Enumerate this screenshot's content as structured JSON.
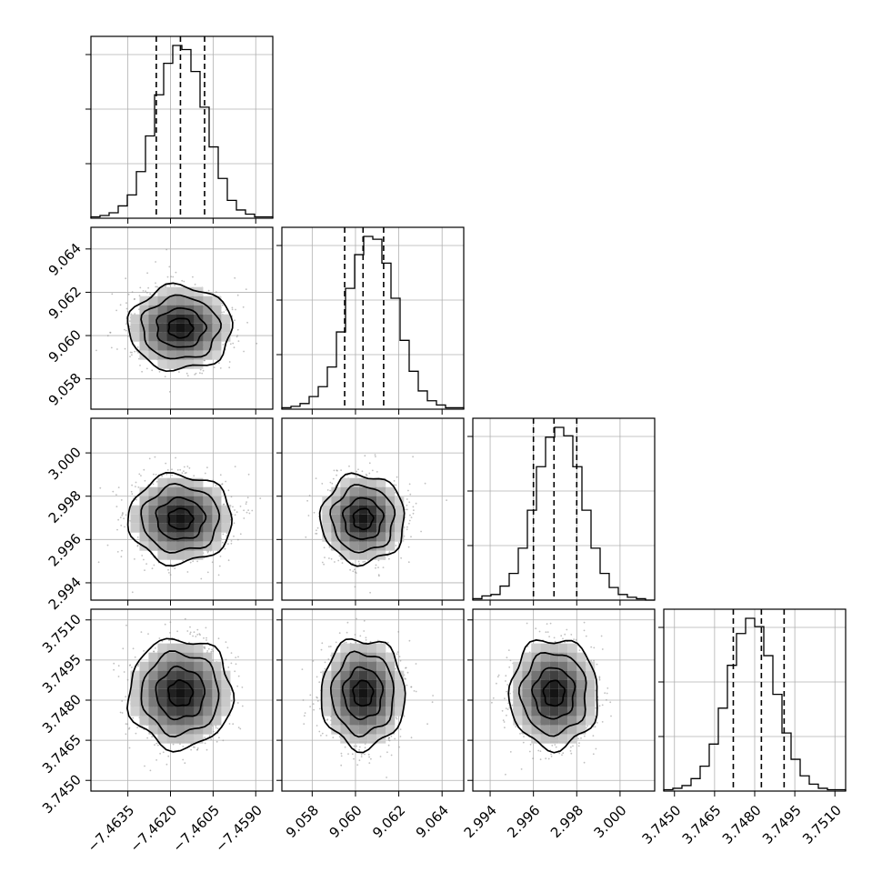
{
  "chart_data": {
    "type": "corner",
    "grid": true,
    "colors": {
      "hist": "#000000",
      "points": "#8c8c8c",
      "grid": "#b0b0b0"
    },
    "parameters": [
      {
        "mean": -7.46165,
        "sigma": 0.00085,
        "range": [
          -7.4648,
          -7.4584
        ],
        "ticks": [
          -7.4635,
          -7.462,
          -7.4605,
          -7.459
        ],
        "tick_labels": [
          "−7.4635",
          "−7.4620",
          "−7.4605",
          "−7.4590"
        ],
        "quantiles": [
          -7.4625,
          -7.46165,
          -7.4608
        ]
      },
      {
        "mean": 9.06035,
        "sigma": 0.0009,
        "range": [
          9.0566,
          9.065
        ],
        "ticks": [
          9.058,
          9.06,
          9.062,
          9.064
        ],
        "tick_labels": [
          "9.058",
          "9.060",
          "9.062",
          "9.064"
        ],
        "quantiles": [
          9.0595,
          9.06035,
          9.0613
        ]
      },
      {
        "mean": 2.99695,
        "sigma": 0.00095,
        "range": [
          2.9932,
          3.0016
        ],
        "ticks": [
          2.994,
          2.996,
          2.998,
          3.0
        ],
        "tick_labels": [
          "2.994",
          "2.996",
          "2.998",
          "3.000"
        ],
        "quantiles": [
          2.996,
          2.99695,
          2.998
        ]
      },
      {
        "mean": 3.74825,
        "sigma": 0.00095,
        "range": [
          3.7446,
          3.7514
        ],
        "ticks": [
          3.745,
          3.7465,
          3.748,
          3.7495,
          3.751
        ],
        "tick_labels": [
          "3.7450",
          "3.7465",
          "3.7480",
          "3.7495",
          "3.7510"
        ],
        "quantiles": [
          3.7472,
          3.74825,
          3.7491
        ]
      }
    ],
    "histograms": [
      {
        "counts": [
          1,
          2,
          4,
          9,
          17,
          34,
          60,
          90,
          113,
          126,
          123,
          107,
          81,
          52,
          29,
          13,
          6,
          3,
          1,
          1
        ]
      },
      {
        "counts": [
          1,
          2,
          4,
          9,
          16,
          30,
          55,
          86,
          110,
          123,
          121,
          104,
          79,
          49,
          27,
          13,
          6,
          3,
          1,
          1
        ]
      },
      {
        "counts": [
          1,
          3,
          4,
          10,
          19,
          37,
          64,
          95,
          116,
          123,
          117,
          95,
          64,
          37,
          19,
          9,
          4,
          2,
          1,
          0
        ]
      },
      {
        "counts": [
          1,
          2,
          4,
          9,
          18,
          34,
          60,
          91,
          114,
          125,
          119,
          98,
          70,
          42,
          23,
          11,
          5,
          2,
          1,
          1
        ]
      }
    ]
  }
}
